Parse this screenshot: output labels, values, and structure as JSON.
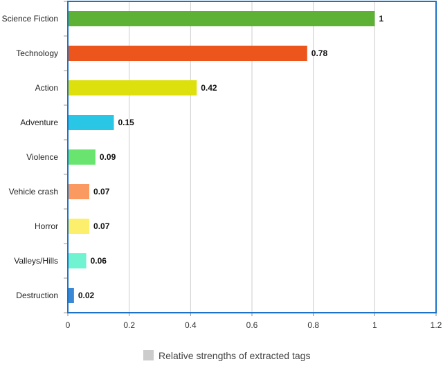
{
  "chart_data": {
    "type": "bar",
    "orientation": "horizontal",
    "categories": [
      "Science Fiction",
      "Technology",
      "Action",
      "Adventure",
      "Violence",
      "Vehicle crash",
      "Horror",
      "Valleys/Hills",
      "Destruction"
    ],
    "values": [
      1,
      0.78,
      0.42,
      0.15,
      0.09,
      0.07,
      0.07,
      0.06,
      0.02
    ],
    "value_labels": [
      "1",
      "0.78",
      "0.42",
      "0.15",
      "0.09",
      "0.07",
      "0.07",
      "0.06",
      "0.02"
    ],
    "colors": [
      "#5db135",
      "#ec561d",
      "#dee00e",
      "#2ac6e5",
      "#69e46f",
      "#fb9a60",
      "#fbef6b",
      "#6ff3d0",
      "#3a87d6"
    ],
    "xlim": [
      0,
      1.2
    ],
    "xticks": [
      "0",
      "0.2",
      "0.4",
      "0.6",
      "0.8",
      "1",
      "1.2"
    ],
    "grid": true,
    "legend": {
      "position": "bottom-center",
      "entries": [
        {
          "label": "Relative strengths of extracted tags",
          "color": "#cccccc"
        }
      ]
    },
    "frame_color": "#1a73c8",
    "gridline_color": "#cccccc"
  }
}
